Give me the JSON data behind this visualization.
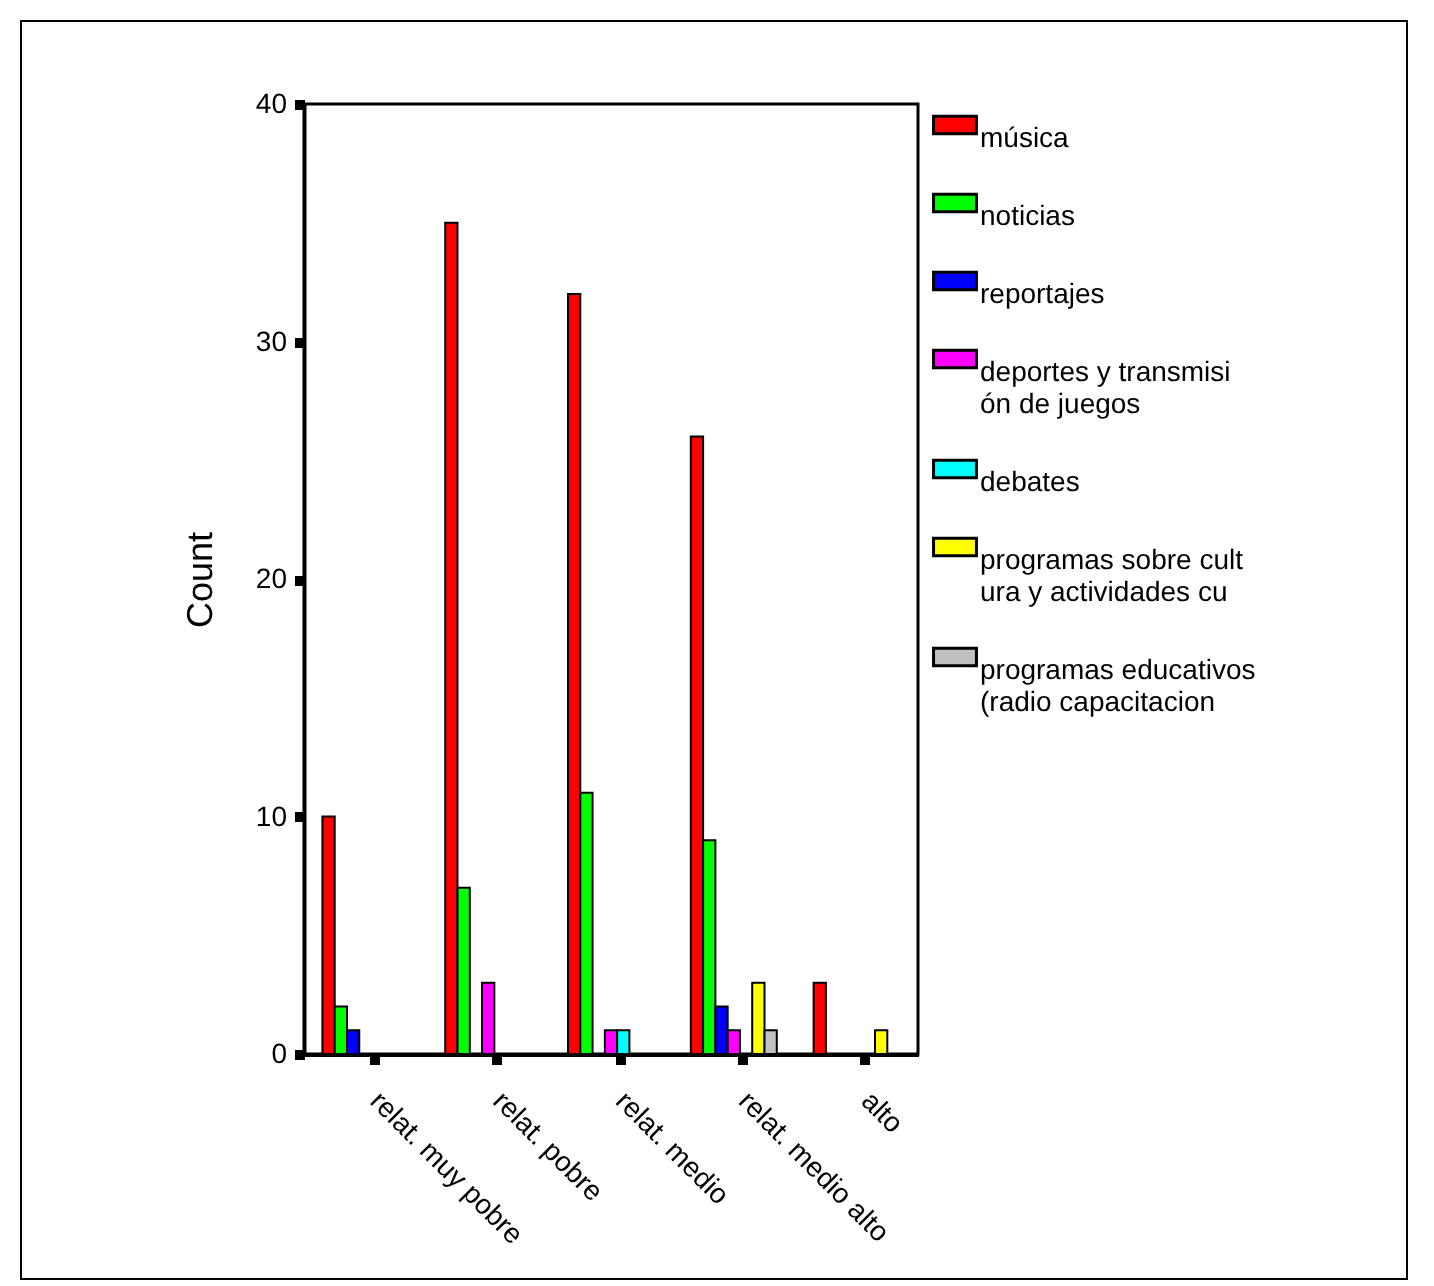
{
  "chart_data": {
    "type": "bar",
    "ylabel": "Count",
    "categories": [
      "relat. muy pobre",
      "relat. pobre",
      "relat. medio",
      "relat. medio alto",
      "alto"
    ],
    "series": [
      {
        "name": "música",
        "color": "#ff0000",
        "values": [
          10,
          35,
          32,
          26,
          3
        ]
      },
      {
        "name": "noticias",
        "color": "#00ff00",
        "values": [
          2,
          7,
          11,
          9,
          null
        ]
      },
      {
        "name": "reportajes",
        "color": "#0000ff",
        "values": [
          1,
          null,
          null,
          2,
          null
        ]
      },
      {
        "name": "deportes y transmisión de juegos",
        "color": "#ff00ff",
        "values": [
          null,
          3,
          1,
          1,
          null
        ]
      },
      {
        "name": "debates",
        "color": "#00ffff",
        "values": [
          null,
          null,
          1,
          null,
          null
        ]
      },
      {
        "name": "programas sobre cultura y actividades cu",
        "color": "#ffff00",
        "values": [
          null,
          null,
          null,
          3,
          1
        ]
      },
      {
        "name": "programas educativos (radio capacitacion",
        "color": "#c0c0c0",
        "values": [
          null,
          null,
          null,
          1,
          null
        ]
      }
    ],
    "ylim": [
      0,
      40
    ],
    "yticks": [
      0,
      10,
      20,
      30,
      40
    ],
    "grid": false,
    "legend": "right"
  }
}
